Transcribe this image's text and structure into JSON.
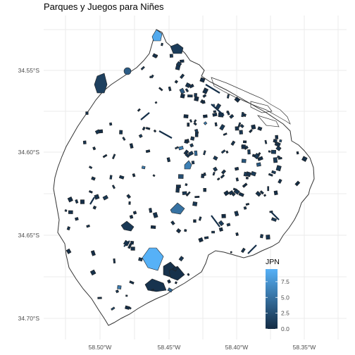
{
  "chart_data": {
    "type": "choropleth-map",
    "title": "Parques y Juegos para Niñes",
    "x_ticks": [
      "58.50°W",
      "58.45°W",
      "58.40°W",
      "58.35°W"
    ],
    "y_ticks": [
      "34.55°S",
      "34.60°S",
      "34.65°S",
      "34.70°S"
    ],
    "legend": {
      "title": "JPN",
      "placement": "bottom-right",
      "range": [
        0,
        9.5
      ],
      "ticks": [
        "0.0",
        "2.5",
        "5.0",
        "7.5"
      ],
      "color_low": "#132b43",
      "color_high": "#56b1f7"
    },
    "grid": true,
    "boundary_color": "#333333"
  }
}
